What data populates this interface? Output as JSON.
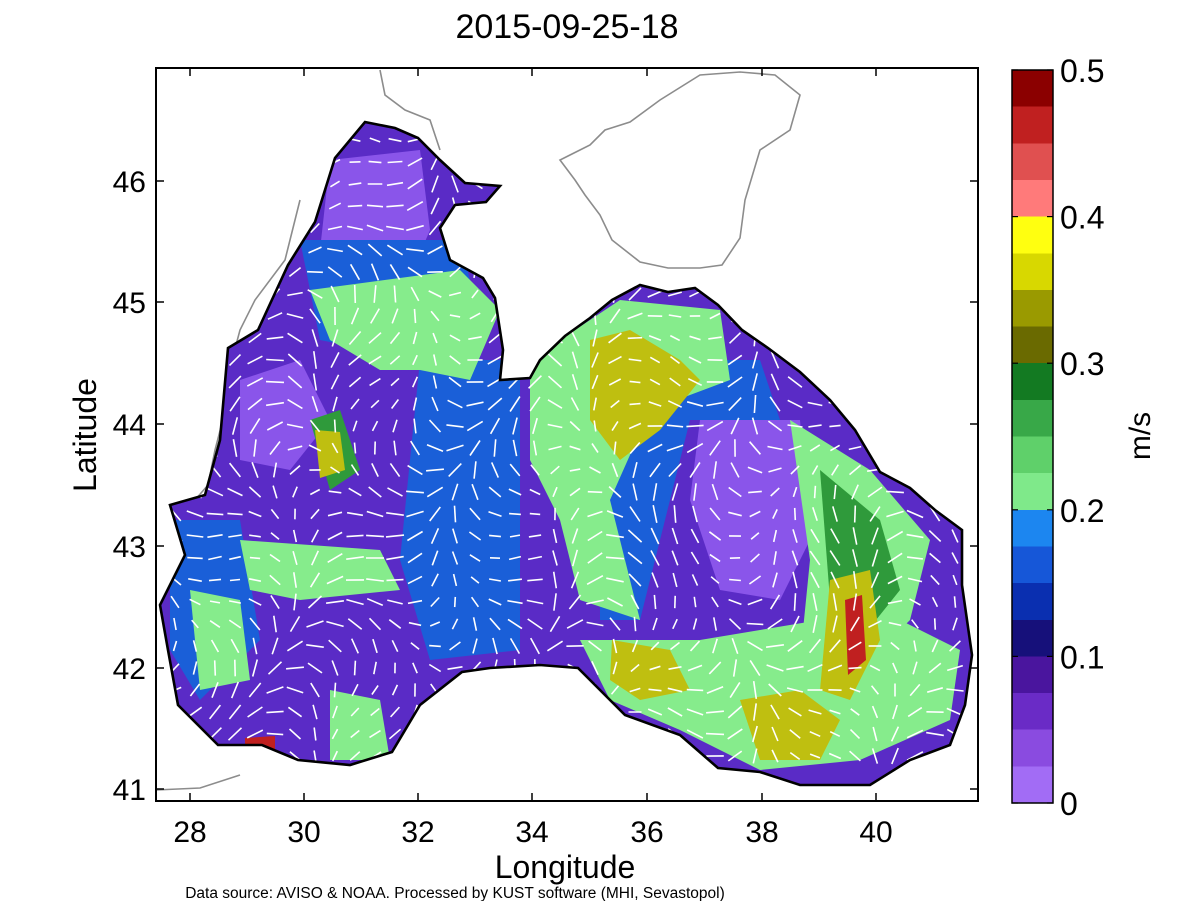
{
  "title": "2015-09-25-18",
  "xlabel": "Longitude",
  "ylabel": "Latitude",
  "footer": "Data source: AVISO & NOAA. Processed by KUST software (MHI, Sevastopol)",
  "x_ticks": [
    "28",
    "30",
    "32",
    "34",
    "36",
    "38",
    "40"
  ],
  "y_ticks": [
    "41",
    "42",
    "43",
    "44",
    "45",
    "46"
  ],
  "colorbar": {
    "label": "m/s",
    "ticks": [
      "0",
      "0.1",
      "0.2",
      "0.3",
      "0.4",
      "0.5"
    ],
    "colors": [
      "#a26cf5",
      "#8a4be0",
      "#6a2bc6",
      "#4a159e",
      "#16107a",
      "#0a2fb0",
      "#1657d8",
      "#1c86f0",
      "#7fe98a",
      "#5fd06a",
      "#38a848",
      "#137a22",
      "#6a6a00",
      "#9a9a00",
      "#d8d800",
      "#ffff10",
      "#ff7a7a",
      "#e05050",
      "#c02020",
      "#8b0000"
    ]
  },
  "map": {
    "water_base": "#5a2bc6",
    "speed_colors": {
      "slow": "#8a55ea",
      "medium": "#1a5fd8",
      "fast": "#86ec8c",
      "faster": "#2f9a3b",
      "strong": "#bfbf10",
      "max": "#c02020"
    },
    "coast_color": "#000000",
    "land_outline_color": "#8c8c8c",
    "arrow_color": "#ffffff"
  }
}
